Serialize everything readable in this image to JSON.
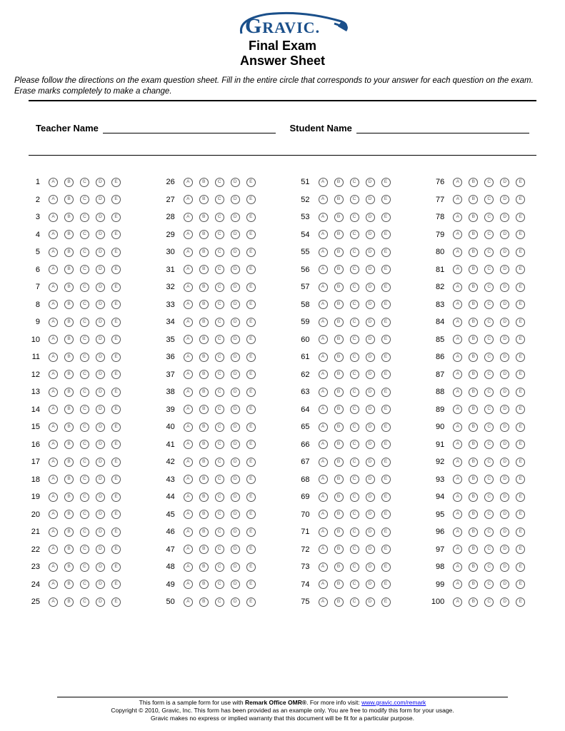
{
  "logo": {
    "text_main": "G",
    "text_rest": "RAVIC",
    "dot": ".",
    "color": "#1a4f8a",
    "swoosh_color": "#1a4f8a"
  },
  "header": {
    "title1": "Final Exam",
    "title2": "Answer Sheet"
  },
  "instructions": "Please follow the directions on the exam question sheet. Fill in the entire circle that corresponds to your answer for each question on the exam. Erase marks completely to make a change.",
  "fields": {
    "teacher_label": "Teacher Name",
    "student_label": "Student Name"
  },
  "answer_grid": {
    "total_questions": 100,
    "columns": 4,
    "questions_per_column": 25,
    "options": [
      "A",
      "B",
      "C",
      "D",
      "E"
    ],
    "bubble_border_color": "#555555",
    "bubble_text_color": "#555555"
  },
  "footer": {
    "line1_a": "This form is a sample form for use with ",
    "line1_b": "Remark Office OMR®",
    "line1_c": ". For more info visit: ",
    "link_text": "www.gravic.com/remark",
    "line2": "Copyright © 2010, Gravic, Inc. This form has been provided as an example only. You are free to modify this form for your usage.",
    "line3": "Gravic makes no express or implied warranty that this document will be fit for a particular purpose."
  }
}
